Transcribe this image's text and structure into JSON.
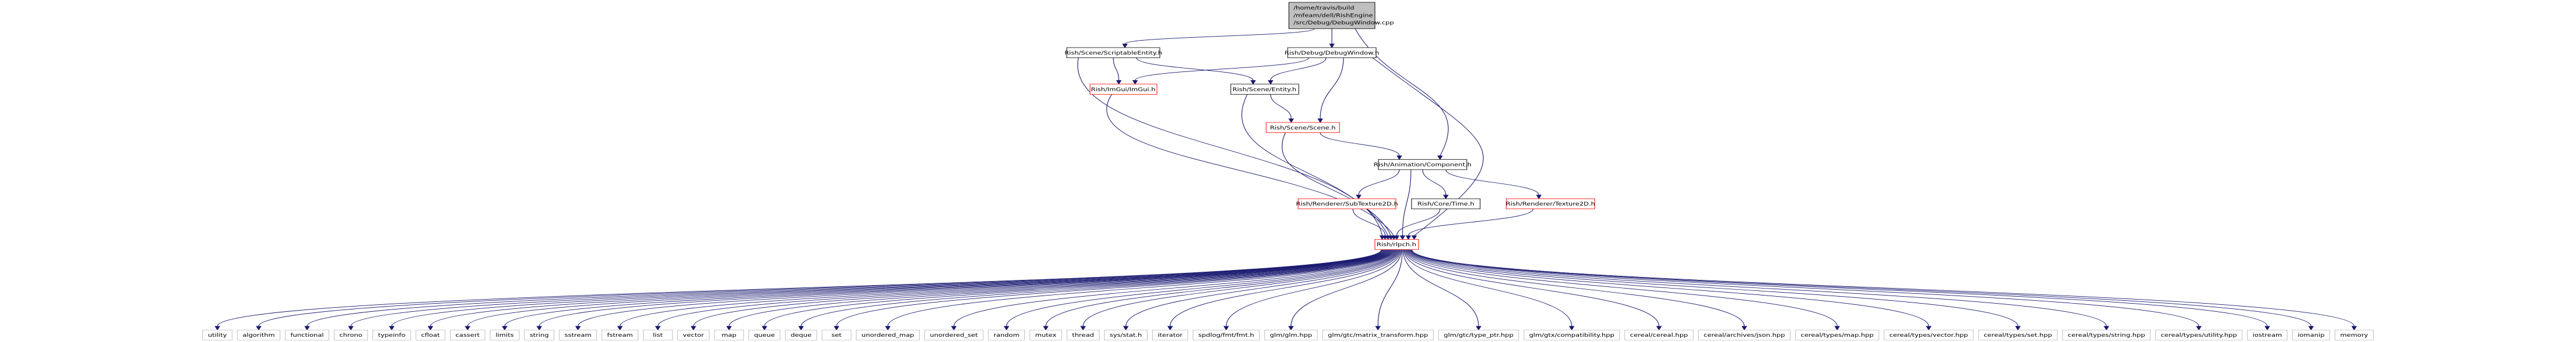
{
  "root": {
    "lines": [
      "/home/travis/build",
      "/mfeam/dell/RishEngine",
      "/src/Debug/DebugWindow.cpp"
    ]
  },
  "nodes": {
    "scriptable_entity": {
      "label": "Rish/Scene/ScriptableEntity.h",
      "linked": false
    },
    "debug_window_h": {
      "label": "Rish/Debug/DebugWindow.h",
      "linked": false
    },
    "imgui": {
      "label": "Rish/ImGui/ImGui.h",
      "linked": true
    },
    "entity": {
      "label": "Rish/Scene/Entity.h",
      "linked": false
    },
    "scene": {
      "label": "Rish/Scene/Scene.h",
      "linked": true
    },
    "component": {
      "label": "Rish/Animation/Component.h",
      "linked": false
    },
    "subtexture2d": {
      "label": "Rish/Renderer/SubTexture2D.h",
      "linked": true
    },
    "time": {
      "label": "Rish/Core/Time.h",
      "linked": false
    },
    "texture2d": {
      "label": "Rish/Renderer/Texture2D.h",
      "linked": true
    },
    "rishpch": {
      "label": "Rish/rlpch.h",
      "linked": true
    }
  },
  "leaves": [
    "utility",
    "algorithm",
    "functional",
    "chrono",
    "typeinfo",
    "cfloat",
    "cassert",
    "limits",
    "string",
    "sstream",
    "fstream",
    "list",
    "vector",
    "map",
    "queue",
    "deque",
    "set",
    "unordered_map",
    "unordered_set",
    "random",
    "mutex",
    "thread",
    "sys/stat.h",
    "iterator",
    "spdlog/fmt/fmt.h",
    "glm/glm.hpp",
    "glm/gtc/matrix_transform.hpp",
    "glm/gtc/type_ptr.hpp",
    "glm/gtx/compatibility.hpp",
    "cereal/cereal.hpp",
    "cereal/archives/json.hpp",
    "cereal/types/map.hpp",
    "cereal/types/vector.hpp",
    "cereal/types/set.hpp",
    "cereal/types/string.hpp",
    "cereal/types/utility.hpp",
    "iostream",
    "iomanip",
    "memory"
  ],
  "colors": {
    "edge": "#191970",
    "root_fill": "#bfbfbf",
    "node_border": "#000000",
    "linked_border": "#ff0000",
    "leaf_border": "#bfbfbf",
    "text": "#000000"
  }
}
